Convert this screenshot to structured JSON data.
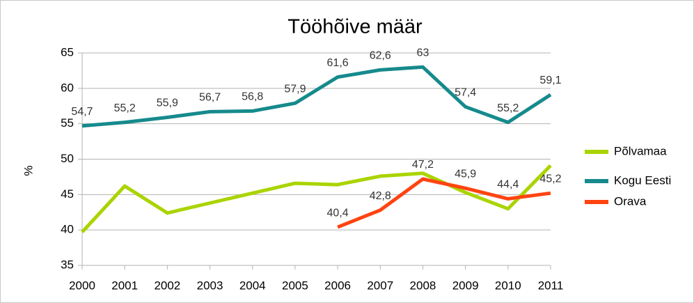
{
  "chart_data": {
    "type": "line",
    "title": "Tööhõive määr",
    "y_label": "%",
    "categories": [
      "2000",
      "2001",
      "2002",
      "2003",
      "2004",
      "2005",
      "2006",
      "2007",
      "2008",
      "2009",
      "2010",
      "2011"
    ],
    "ylim": [
      35,
      65
    ],
    "yticks": [
      35,
      40,
      45,
      50,
      55,
      60,
      65
    ],
    "grid": true,
    "series": [
      {
        "name": "Põlvamaa",
        "color": "#aad400",
        "values": [
          39.7,
          46.2,
          42.4,
          43.8,
          45.2,
          46.6,
          46.4,
          47.6,
          48.0,
          45.3,
          43.0,
          49.1
        ]
      },
      {
        "name": "Kogu Eesti",
        "color": "#168a8c",
        "values": [
          54.7,
          55.2,
          55.9,
          56.7,
          56.8,
          57.9,
          61.6,
          62.6,
          63,
          57.4,
          55.2,
          59.1
        ],
        "value_labels": [
          "54,7",
          "55,2",
          "55,9",
          "56,7",
          "56,8",
          "57,9",
          "61,6",
          "62,6",
          "63",
          "57,4",
          "55,2",
          "59,1"
        ]
      },
      {
        "name": "Orava",
        "color": "#ff4411",
        "values": [
          null,
          null,
          null,
          null,
          null,
          null,
          40.4,
          42.8,
          47.2,
          45.9,
          44.4,
          45.2
        ],
        "value_labels": [
          null,
          null,
          null,
          null,
          null,
          null,
          "40,4",
          "42,8",
          "47,2",
          "45,9",
          "44,4",
          "45,2"
        ]
      }
    ]
  }
}
